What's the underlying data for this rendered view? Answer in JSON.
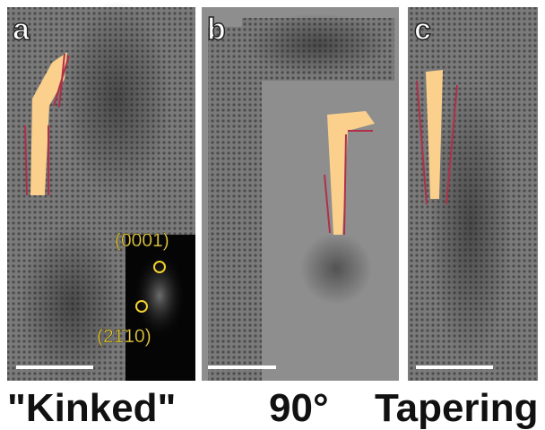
{
  "panels": [
    {
      "label": "a",
      "caption": "\"Kinked\""
    },
    {
      "label": "b",
      "caption": "90°"
    },
    {
      "label": "c",
      "caption": "Tapering"
    }
  ],
  "inset": {
    "labels": [
      "(0001)",
      "(21̄10)"
    ]
  }
}
